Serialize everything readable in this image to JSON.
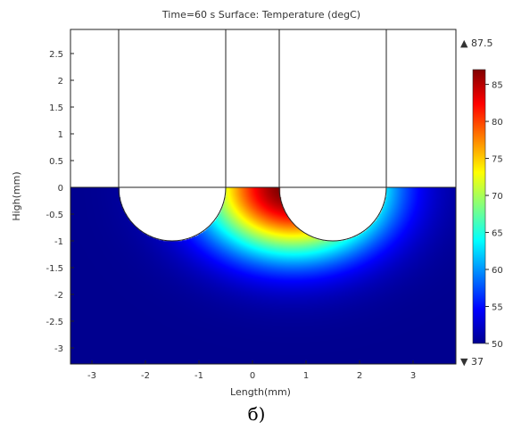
{
  "chart_data": {
    "type": "heatmap",
    "title": "Time=60 s   Surface: Temperature (degC)",
    "xlabel": "Length(mm)",
    "ylabel": "High(mm)",
    "xlim": [
      -3.4,
      3.8
    ],
    "ylim": [
      -3.3,
      2.95
    ],
    "x_ticks": [
      -3,
      -2,
      -1,
      0,
      1,
      2,
      3
    ],
    "y_ticks": [
      2.5,
      2,
      1.5,
      1,
      0.5,
      0,
      -0.5,
      -1,
      -1.5,
      -2,
      -2.5,
      -3
    ],
    "colorbar": {
      "min": 50,
      "max": 87,
      "ticks": [
        85,
        80,
        75,
        70,
        65,
        60,
        55,
        50
      ],
      "max_label": "▲ 87.5",
      "min_label": "▼ 37",
      "colors": [
        "#00008f",
        "#0000ff",
        "#0080ff",
        "#00ffff",
        "#80ff80",
        "#ffff00",
        "#ff8000",
        "#ff0000",
        "#800000"
      ]
    },
    "domain_lines_x": [
      -2.5,
      -0.5,
      0.5,
      2.5
    ],
    "cavities": [
      {
        "center_x": -1.5,
        "radius": 1.0
      },
      {
        "center_x": 1.5,
        "radius": 1.0
      }
    ],
    "heat_source": {
      "x": 0,
      "y": 0,
      "max_temp": 87.5,
      "far_temp": 50
    }
  },
  "caption": "б)"
}
